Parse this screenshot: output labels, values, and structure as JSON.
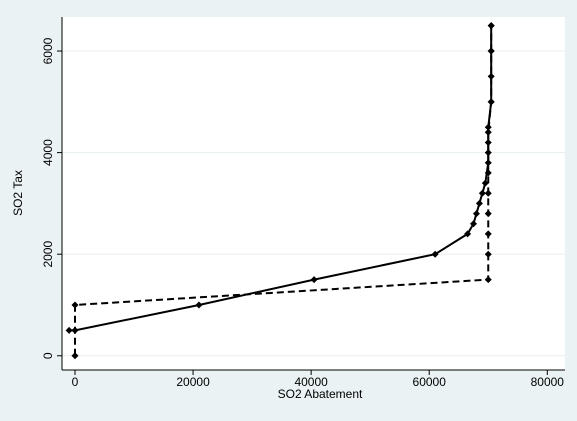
{
  "chart_data": {
    "type": "line",
    "x_label": "SO2 Abatement",
    "y_label": "SO2 Tax",
    "xlim": [
      -2200,
      83000
    ],
    "xticks": [
      0,
      20000,
      40000,
      60000,
      80000
    ],
    "ylim": [
      -280,
      6670
    ],
    "yticks": [
      0,
      2000,
      4000,
      6000
    ],
    "grid": true,
    "markers": "diamond",
    "series": [
      {
        "color": "#000000",
        "line_style": "solid",
        "x": [
          -1000,
          0,
          21000,
          40500,
          61000,
          66500,
          67500,
          68000,
          68500,
          69000,
          69500,
          70000,
          70000,
          70000,
          70500,
          70500,
          70500,
          70500
        ],
        "values": [
          500,
          500,
          1000,
          1500,
          2000,
          2400,
          2600,
          2800,
          3000,
          3200,
          3400,
          3800,
          4200,
          4500,
          5000,
          5500,
          6000,
          6500
        ]
      },
      {
        "color": "#000000",
        "line_style": "dashed",
        "x": [
          0,
          0,
          70000,
          70000,
          70000,
          70000,
          70000,
          70000,
          70000,
          70000,
          70500,
          70500,
          70500
        ],
        "values": [
          0,
          1000,
          1500,
          2000,
          2400,
          2800,
          3200,
          3600,
          4000,
          4400,
          5000,
          6000,
          6500
        ]
      }
    ]
  }
}
